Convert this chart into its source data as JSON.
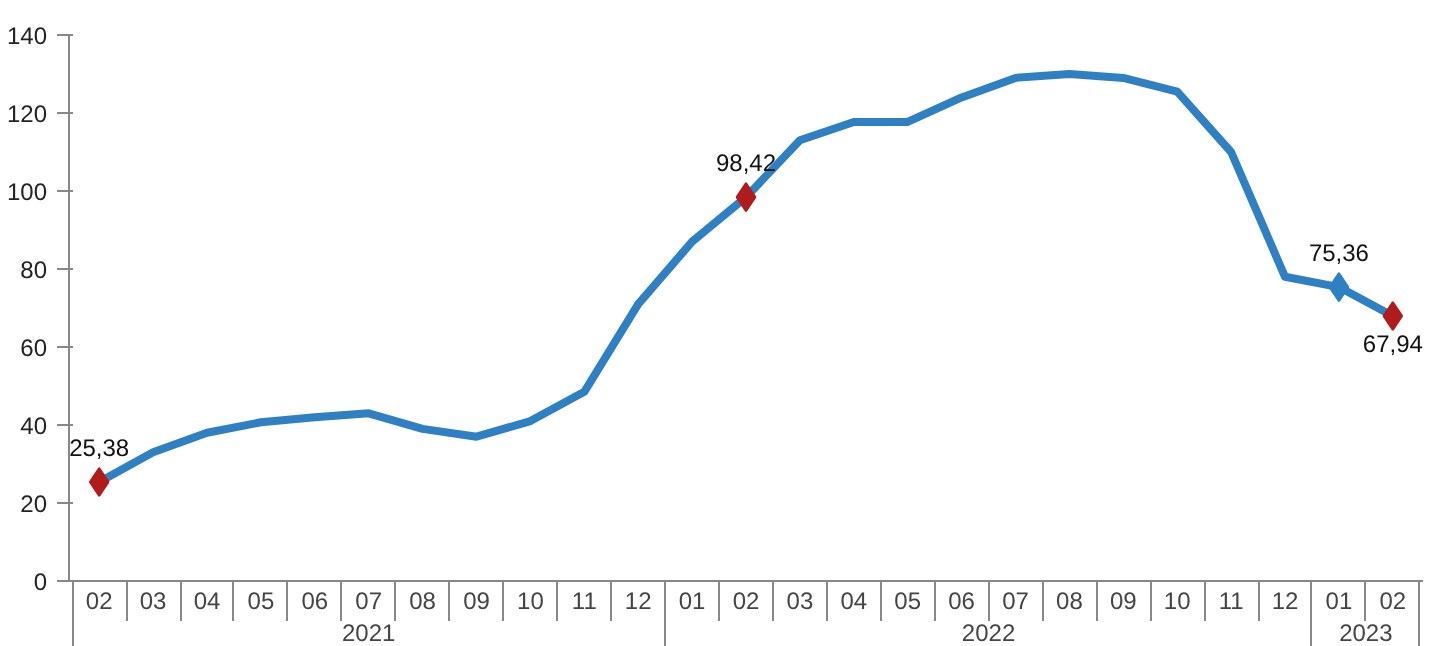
{
  "chart_data": {
    "type": "line",
    "categories": [
      "02",
      "03",
      "04",
      "05",
      "06",
      "07",
      "08",
      "09",
      "10",
      "11",
      "12",
      "01",
      "02",
      "03",
      "04",
      "05",
      "06",
      "07",
      "08",
      "09",
      "10",
      "11",
      "12",
      "01",
      "02"
    ],
    "series": [
      {
        "color": "#2e80c3",
        "values": [
          25.38,
          33,
          38,
          40.7,
          42,
          43,
          39,
          37,
          41,
          48.5,
          71,
          87,
          98.42,
          113,
          117.7,
          117.7,
          124,
          129,
          130,
          129,
          125.5,
          110,
          78,
          75.36,
          67.94
        ],
        "value_labels": [
          "25,38",
          null,
          null,
          null,
          null,
          null,
          null,
          null,
          null,
          null,
          null,
          null,
          "98,42",
          null,
          null,
          null,
          null,
          null,
          null,
          null,
          null,
          null,
          null,
          "75,36",
          "67,94"
        ]
      },
      {
        "type": "scatter",
        "marker": "diamond",
        "color": "#b01c1c",
        "values": [
          25.38,
          null,
          null,
          null,
          null,
          null,
          null,
          null,
          null,
          null,
          null,
          null,
          98.42,
          null,
          null,
          null,
          null,
          null,
          null,
          null,
          null,
          null,
          null,
          null,
          67.94
        ]
      },
      {
        "type": "scatter",
        "marker": "diamond",
        "color": "#2e80c3",
        "values": [
          null,
          null,
          null,
          null,
          null,
          null,
          null,
          null,
          null,
          null,
          null,
          null,
          null,
          null,
          null,
          null,
          null,
          null,
          null,
          null,
          null,
          null,
          null,
          75.36,
          null
        ]
      }
    ],
    "annotations": [
      "2021",
      "2022",
      "2023"
    ],
    "ylim": [
      0,
      140
    ],
    "yticks": [
      0,
      20,
      40,
      60,
      80,
      100,
      120,
      140
    ],
    "grid": false
  }
}
